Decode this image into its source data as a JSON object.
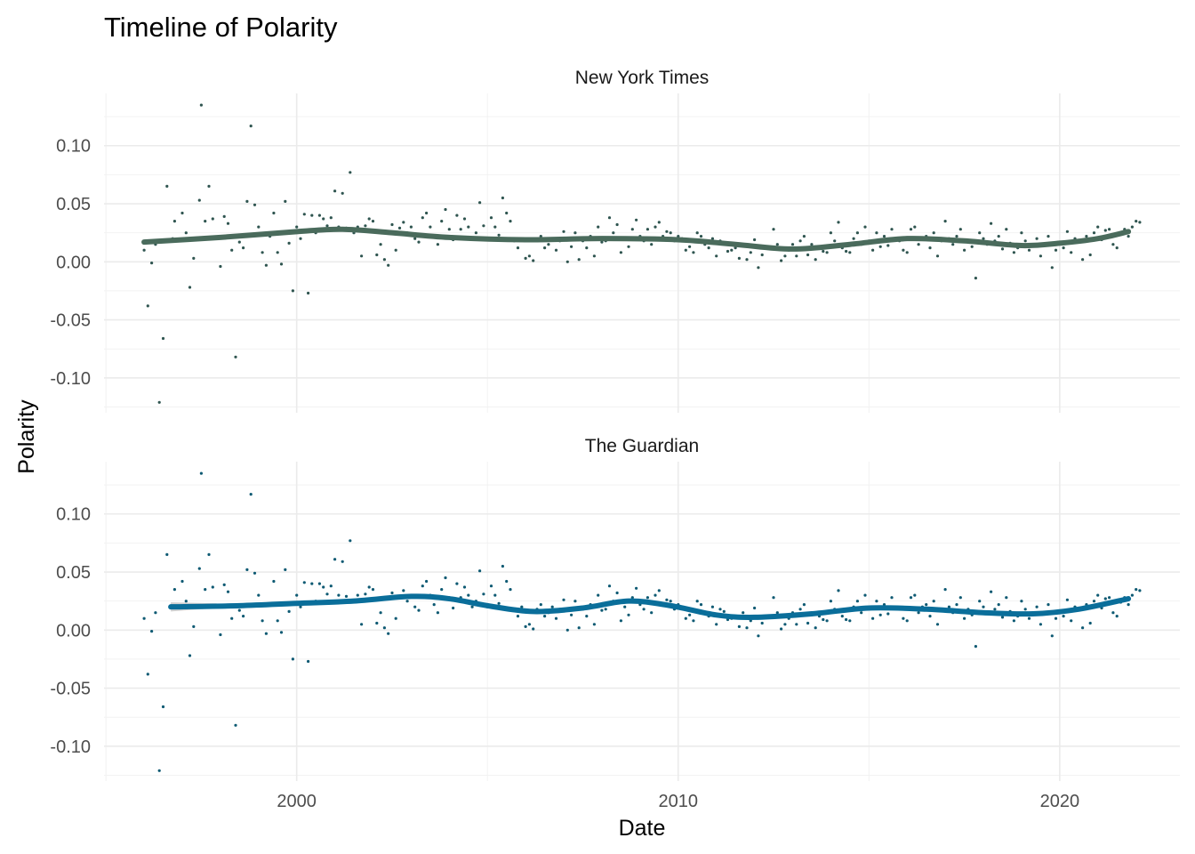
{
  "chart_data": {
    "type": "scatter",
    "title": "Timeline of Polarity",
    "xlabel": "Date",
    "ylabel": "Polarity",
    "xlim": [
      1994.95,
      2023.15
    ],
    "ylim": [
      -0.13,
      0.145
    ],
    "x_ticks": [
      2000,
      2010,
      2020
    ],
    "x_tick_labels": [
      "2000",
      "2010",
      "2020"
    ],
    "y_ticks": [
      -0.1,
      -0.05,
      0.0,
      0.05,
      0.1
    ],
    "y_tick_labels": [
      "-0.10",
      "-0.05",
      "0.00",
      "0.05",
      "0.10"
    ],
    "grid": true,
    "smoother": "loess",
    "panels": [
      {
        "strip_label": "New York Times",
        "point_color": "#2f5550",
        "line_color": "#4a6b5c",
        "trend": [
          [
            1996.0,
            0.017
          ],
          [
            1998.0,
            0.021
          ],
          [
            2000.0,
            0.026
          ],
          [
            2001.2,
            0.028
          ],
          [
            2002.5,
            0.025
          ],
          [
            2004.0,
            0.021
          ],
          [
            2006.0,
            0.019
          ],
          [
            2008.0,
            0.02
          ],
          [
            2010.0,
            0.019
          ],
          [
            2011.5,
            0.015
          ],
          [
            2013.0,
            0.011
          ],
          [
            2014.5,
            0.015
          ],
          [
            2016.0,
            0.02
          ],
          [
            2017.5,
            0.018
          ],
          [
            2019.0,
            0.014
          ],
          [
            2020.0,
            0.016
          ],
          [
            2021.0,
            0.02
          ],
          [
            2021.8,
            0.026
          ]
        ]
      },
      {
        "strip_label": "The Guardian",
        "point_color": "#0e5a73",
        "line_color": "#0a6e9a",
        "trend": [
          [
            1996.7,
            0.02
          ],
          [
            1998.5,
            0.021
          ],
          [
            2000.0,
            0.023
          ],
          [
            2001.5,
            0.025
          ],
          [
            2003.0,
            0.029
          ],
          [
            2004.0,
            0.027
          ],
          [
            2005.0,
            0.021
          ],
          [
            2006.2,
            0.016
          ],
          [
            2007.5,
            0.019
          ],
          [
            2008.7,
            0.025
          ],
          [
            2009.8,
            0.021
          ],
          [
            2011.0,
            0.013
          ],
          [
            2012.0,
            0.011
          ],
          [
            2013.5,
            0.014
          ],
          [
            2015.0,
            0.019
          ],
          [
            2016.5,
            0.018
          ],
          [
            2018.0,
            0.015
          ],
          [
            2019.3,
            0.014
          ],
          [
            2020.5,
            0.018
          ],
          [
            2021.8,
            0.027
          ]
        ],
        "ci_band": {
          "x": [
            1996.7,
            1997.9
          ],
          "lower": [
            0.016,
            0.019
          ],
          "upper": [
            0.024,
            0.023
          ]
        }
      }
    ],
    "points": [
      [
        1996.0,
        0.01
      ],
      [
        1996.1,
        -0.038
      ],
      [
        1996.2,
        -0.001
      ],
      [
        1996.3,
        0.015
      ],
      [
        1996.4,
        -0.121
      ],
      [
        1996.5,
        -0.066
      ],
      [
        1996.6,
        0.065
      ],
      [
        1996.75,
        0.02
      ],
      [
        1996.8,
        0.035
      ],
      [
        1997.0,
        0.042
      ],
      [
        1997.1,
        0.025
      ],
      [
        1997.2,
        -0.022
      ],
      [
        1997.3,
        0.003
      ],
      [
        1997.45,
        0.053
      ],
      [
        1997.5,
        0.135
      ],
      [
        1997.6,
        0.035
      ],
      [
        1997.7,
        0.065
      ],
      [
        1997.8,
        0.037
      ],
      [
        1997.9,
        0.02
      ],
      [
        1998.0,
        -0.004
      ],
      [
        1998.1,
        0.039
      ],
      [
        1998.2,
        0.033
      ],
      [
        1998.3,
        0.01
      ],
      [
        1998.4,
        -0.082
      ],
      [
        1998.5,
        0.017
      ],
      [
        1998.6,
        0.012
      ],
      [
        1998.7,
        0.052
      ],
      [
        1998.8,
        0.117
      ],
      [
        1998.9,
        0.049
      ],
      [
        1999.0,
        0.03
      ],
      [
        1999.1,
        0.008
      ],
      [
        1999.2,
        -0.003
      ],
      [
        1999.3,
        0.022
      ],
      [
        1999.4,
        0.042
      ],
      [
        1999.5,
        0.008
      ],
      [
        1999.6,
        -0.002
      ],
      [
        1999.7,
        0.052
      ],
      [
        1999.8,
        0.016
      ],
      [
        1999.9,
        -0.025
      ],
      [
        2000.0,
        0.03
      ],
      [
        2000.1,
        0.02
      ],
      [
        2000.2,
        0.041
      ],
      [
        2000.3,
        -0.027
      ],
      [
        2000.4,
        0.04
      ],
      [
        2000.5,
        0.025
      ],
      [
        2000.6,
        0.04
      ],
      [
        2000.7,
        0.037
      ],
      [
        2000.8,
        0.031
      ],
      [
        2000.9,
        0.038
      ],
      [
        2001.0,
        0.061
      ],
      [
        2001.1,
        0.03
      ],
      [
        2001.2,
        0.059
      ],
      [
        2001.3,
        0.029
      ],
      [
        2001.4,
        0.077
      ],
      [
        2001.5,
        0.025
      ],
      [
        2001.6,
        0.03
      ],
      [
        2001.7,
        0.005
      ],
      [
        2001.8,
        0.031
      ],
      [
        2001.9,
        0.037
      ],
      [
        2002.0,
        0.035
      ],
      [
        2002.1,
        0.006
      ],
      [
        2002.2,
        0.015
      ],
      [
        2002.3,
        0.002
      ],
      [
        2002.4,
        -0.003
      ],
      [
        2002.5,
        0.032
      ],
      [
        2002.6,
        0.01
      ],
      [
        2002.7,
        0.029
      ],
      [
        2002.8,
        0.034
      ],
      [
        2002.9,
        0.025
      ],
      [
        2003.0,
        0.03
      ],
      [
        2003.1,
        0.02
      ],
      [
        2003.2,
        0.017
      ],
      [
        2003.3,
        0.038
      ],
      [
        2003.4,
        0.042
      ],
      [
        2003.5,
        0.03
      ],
      [
        2003.6,
        0.022
      ],
      [
        2003.7,
        0.015
      ],
      [
        2003.8,
        0.035
      ],
      [
        2003.9,
        0.045
      ],
      [
        2004.0,
        0.028
      ],
      [
        2004.1,
        0.019
      ],
      [
        2004.2,
        0.04
      ],
      [
        2004.3,
        0.028
      ],
      [
        2004.4,
        0.037
      ],
      [
        2004.5,
        0.03
      ],
      [
        2004.6,
        0.02
      ],
      [
        2004.7,
        0.025
      ],
      [
        2004.8,
        0.051
      ],
      [
        2004.9,
        0.031
      ],
      [
        2005.0,
        0.02
      ],
      [
        2005.1,
        0.038
      ],
      [
        2005.2,
        0.03
      ],
      [
        2005.3,
        0.023
      ],
      [
        2005.4,
        0.055
      ],
      [
        2005.5,
        0.042
      ],
      [
        2005.6,
        0.035
      ],
      [
        2005.7,
        0.018
      ],
      [
        2005.8,
        0.012
      ],
      [
        2005.9,
        0.02
      ],
      [
        2006.0,
        0.003
      ],
      [
        2006.1,
        0.005
      ],
      [
        2006.2,
        0.001
      ],
      [
        2006.3,
        0.018
      ],
      [
        2006.4,
        0.022
      ],
      [
        2006.5,
        0.012
      ],
      [
        2006.6,
        0.015
      ],
      [
        2006.7,
        0.02
      ],
      [
        2006.8,
        0.01
      ],
      [
        2006.9,
        0.018
      ],
      [
        2007.0,
        0.026
      ],
      [
        2007.1,
        0.0
      ],
      [
        2007.2,
        0.013
      ],
      [
        2007.3,
        0.025
      ],
      [
        2007.4,
        0.002
      ],
      [
        2007.5,
        0.018
      ],
      [
        2007.6,
        0.012
      ],
      [
        2007.7,
        0.022
      ],
      [
        2007.8,
        0.005
      ],
      [
        2007.9,
        0.03
      ],
      [
        2008.0,
        0.017
      ],
      [
        2008.1,
        0.018
      ],
      [
        2008.2,
        0.038
      ],
      [
        2008.3,
        0.025
      ],
      [
        2008.4,
        0.032
      ],
      [
        2008.5,
        0.008
      ],
      [
        2008.6,
        0.02
      ],
      [
        2008.7,
        0.013
      ],
      [
        2008.8,
        0.028
      ],
      [
        2008.9,
        0.036
      ],
      [
        2009.0,
        0.022
      ],
      [
        2009.1,
        0.018
      ],
      [
        2009.2,
        0.028
      ],
      [
        2009.3,
        0.015
      ],
      [
        2009.4,
        0.03
      ],
      [
        2009.5,
        0.034
      ],
      [
        2009.6,
        0.022
      ],
      [
        2009.7,
        0.026
      ],
      [
        2009.8,
        0.025
      ],
      [
        2009.9,
        0.018
      ],
      [
        2010.0,
        0.022
      ],
      [
        2010.1,
        0.02
      ],
      [
        2010.2,
        0.01
      ],
      [
        2010.3,
        0.013
      ],
      [
        2010.4,
        0.008
      ],
      [
        2010.5,
        0.025
      ],
      [
        2010.6,
        0.022
      ],
      [
        2010.7,
        0.015
      ],
      [
        2010.8,
        0.012
      ],
      [
        2010.9,
        0.02
      ],
      [
        2011.0,
        0.005
      ],
      [
        2011.1,
        0.018
      ],
      [
        2011.2,
        0.016
      ],
      [
        2011.3,
        0.009
      ],
      [
        2011.4,
        0.01
      ],
      [
        2011.5,
        0.012
      ],
      [
        2011.6,
        0.003
      ],
      [
        2011.7,
        0.015
      ],
      [
        2011.8,
        0.002
      ],
      [
        2011.9,
        0.008
      ],
      [
        2012.0,
        0.019
      ],
      [
        2012.1,
        -0.005
      ],
      [
        2012.2,
        0.006
      ],
      [
        2012.3,
        0.012
      ],
      [
        2012.4,
        0.011
      ],
      [
        2012.5,
        0.028
      ],
      [
        2012.6,
        0.015
      ],
      [
        2012.7,
        0.001
      ],
      [
        2012.8,
        0.005
      ],
      [
        2012.9,
        0.01
      ],
      [
        2013.0,
        0.015
      ],
      [
        2013.1,
        0.005
      ],
      [
        2013.2,
        0.018
      ],
      [
        2013.3,
        0.022
      ],
      [
        2013.4,
        0.006
      ],
      [
        2013.5,
        0.015
      ],
      [
        2013.6,
        0.002
      ],
      [
        2013.7,
        0.012
      ],
      [
        2013.8,
        0.009
      ],
      [
        2013.9,
        0.008
      ],
      [
        2014.0,
        0.025
      ],
      [
        2014.1,
        0.018
      ],
      [
        2014.2,
        0.034
      ],
      [
        2014.3,
        0.012
      ],
      [
        2014.4,
        0.009
      ],
      [
        2014.5,
        0.008
      ],
      [
        2014.6,
        0.02
      ],
      [
        2014.7,
        0.025
      ],
      [
        2014.8,
        0.015
      ],
      [
        2014.9,
        0.03
      ],
      [
        2015.0,
        0.018
      ],
      [
        2015.1,
        0.01
      ],
      [
        2015.2,
        0.025
      ],
      [
        2015.3,
        0.013
      ],
      [
        2015.4,
        0.022
      ],
      [
        2015.5,
        0.014
      ],
      [
        2015.6,
        0.028
      ],
      [
        2015.7,
        0.02
      ],
      [
        2015.8,
        0.018
      ],
      [
        2015.9,
        0.01
      ],
      [
        2016.0,
        0.008
      ],
      [
        2016.1,
        0.028
      ],
      [
        2016.2,
        0.03
      ],
      [
        2016.3,
        0.015
      ],
      [
        2016.4,
        0.02
      ],
      [
        2016.5,
        0.022
      ],
      [
        2016.6,
        0.012
      ],
      [
        2016.7,
        0.025
      ],
      [
        2016.8,
        0.005
      ],
      [
        2016.9,
        0.018
      ],
      [
        2017.0,
        0.035
      ],
      [
        2017.1,
        0.02
      ],
      [
        2017.2,
        0.015
      ],
      [
        2017.3,
        0.022
      ],
      [
        2017.4,
        0.028
      ],
      [
        2017.5,
        0.01
      ],
      [
        2017.6,
        0.018
      ],
      [
        2017.7,
        0.013
      ],
      [
        2017.8,
        -0.014
      ],
      [
        2017.9,
        0.025
      ],
      [
        2018.0,
        0.02
      ],
      [
        2018.1,
        0.015
      ],
      [
        2018.2,
        0.033
      ],
      [
        2018.3,
        0.018
      ],
      [
        2018.4,
        0.022
      ],
      [
        2018.5,
        0.011
      ],
      [
        2018.6,
        0.028
      ],
      [
        2018.7,
        0.016
      ],
      [
        2018.8,
        0.008
      ],
      [
        2018.9,
        0.012
      ],
      [
        2019.0,
        0.025
      ],
      [
        2019.1,
        0.018
      ],
      [
        2019.2,
        0.01
      ],
      [
        2019.3,
        0.014
      ],
      [
        2019.4,
        0.02
      ],
      [
        2019.5,
        0.005
      ],
      [
        2019.6,
        0.015
      ],
      [
        2019.7,
        0.022
      ],
      [
        2019.8,
        -0.005
      ],
      [
        2019.9,
        0.01
      ],
      [
        2020.0,
        0.016
      ],
      [
        2020.1,
        0.012
      ],
      [
        2020.2,
        0.026
      ],
      [
        2020.3,
        0.008
      ],
      [
        2020.4,
        0.02
      ],
      [
        2020.5,
        0.018
      ],
      [
        2020.6,
        0.002
      ],
      [
        2020.7,
        0.022
      ],
      [
        2020.8,
        0.006
      ],
      [
        2020.9,
        0.025
      ],
      [
        2021.0,
        0.03
      ],
      [
        2021.1,
        0.019
      ],
      [
        2021.2,
        0.027
      ],
      [
        2021.3,
        0.028
      ],
      [
        2021.4,
        0.015
      ],
      [
        2021.5,
        0.012
      ],
      [
        2021.6,
        0.024
      ],
      [
        2021.7,
        0.028
      ],
      [
        2021.8,
        0.022
      ],
      [
        2021.9,
        0.03
      ],
      [
        2022.0,
        0.035
      ],
      [
        2022.1,
        0.034
      ]
    ]
  }
}
